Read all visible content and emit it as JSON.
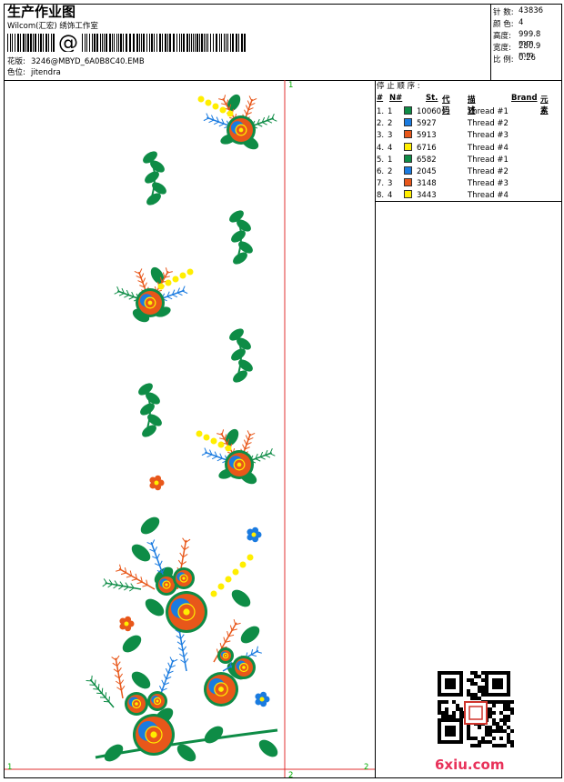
{
  "header": {
    "title": "生产作业图",
    "software": "Wilcom(汇宏) 绣饰工作室",
    "design_label": "花版:",
    "design_value": "3246@MBYD_6A0B8C40.EMB",
    "color_label": "色位:",
    "color_value": "jitendra"
  },
  "stats": [
    {
      "label": "针 数:",
      "value": "43836"
    },
    {
      "label": "颜 色:",
      "value": "4"
    },
    {
      "label": "高度:",
      "value": "999.8 mm"
    },
    {
      "label": "宽度:",
      "value": "280.9 mm"
    },
    {
      "label": "比 例:",
      "value": "0.26"
    }
  ],
  "thread_table": {
    "caption": "停 止 顺 序 :",
    "headers": {
      "hash": "#",
      "no": "N#",
      "st": "St.",
      "code": "代码",
      "desc": "描述",
      "brand": "Brand",
      "element": "元素"
    },
    "rows": [
      {
        "index": "1.",
        "no": "1",
        "color": "#0e8c46",
        "code": "10060",
        "desc": "Thread #1"
      },
      {
        "index": "2.",
        "no": "2",
        "color": "#1a7be0",
        "code": "5927",
        "desc": "Thread #2"
      },
      {
        "index": "3.",
        "no": "3",
        "color": "#e8571a",
        "code": "5913",
        "desc": "Thread #3"
      },
      {
        "index": "4.",
        "no": "4",
        "color": "#ffee00",
        "code": "6716",
        "desc": "Thread #4"
      },
      {
        "index": "5.",
        "no": "1",
        "color": "#0e8c46",
        "code": "6582",
        "desc": "Thread #1"
      },
      {
        "index": "6.",
        "no": "2",
        "color": "#1a7be0",
        "code": "2045",
        "desc": "Thread #2"
      },
      {
        "index": "7.",
        "no": "3",
        "color": "#e8571a",
        "code": "3148",
        "desc": "Thread #3"
      },
      {
        "index": "8.",
        "no": "4",
        "color": "#ffee00",
        "code": "3443",
        "desc": "Thread #4"
      }
    ]
  },
  "guide_marks": {
    "top": "1",
    "left_bottom": "1",
    "right_bottom": "2",
    "bottom": "2"
  },
  "colors": {
    "green": "#0e8c46",
    "blue": "#1a7be0",
    "orange": "#e8571a",
    "yellow": "#ffee00",
    "guide": "#e03030"
  },
  "watermark": "6xiu.com",
  "icons": {
    "barcode": "barcode-icon",
    "qr": "qr-code-icon"
  }
}
